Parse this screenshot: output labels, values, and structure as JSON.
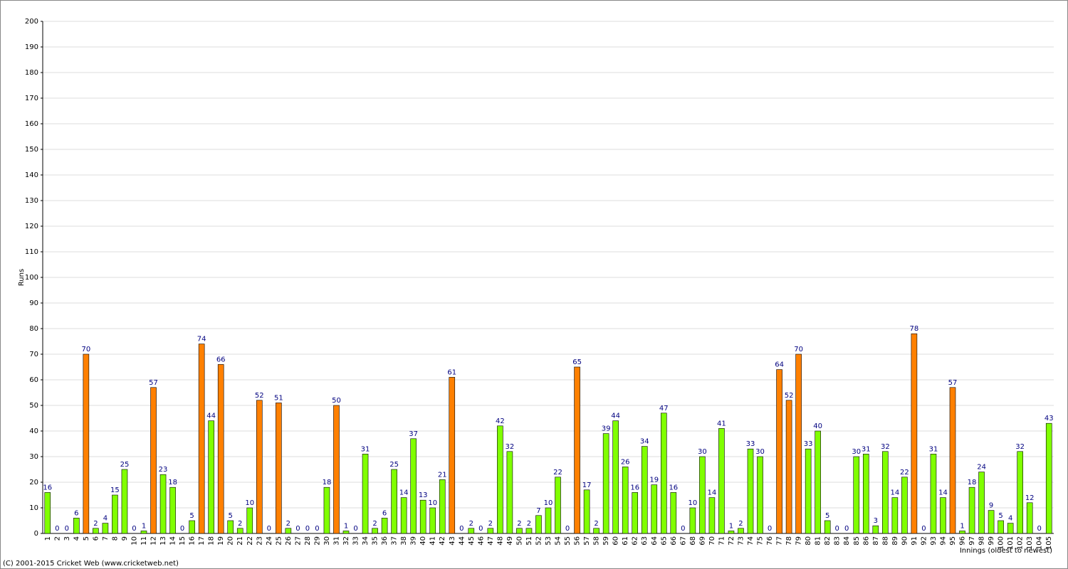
{
  "chart_data": {
    "type": "bar",
    "y_label": "Runs",
    "x_label": "Innings (oldest to newest)",
    "footer": "(C) 2001-2015 Cricket Web (www.cricketweb.net)",
    "categories": [
      "1",
      "2",
      "3",
      "4",
      "5",
      "6",
      "7",
      "8",
      "9",
      "10",
      "11",
      "12",
      "13",
      "14",
      "15",
      "16",
      "17",
      "18",
      "19",
      "20",
      "21",
      "22",
      "23",
      "24",
      "25",
      "26",
      "27",
      "28",
      "29",
      "30",
      "31",
      "32",
      "33",
      "34",
      "35",
      "36",
      "37",
      "38",
      "39",
      "40",
      "41",
      "42",
      "43",
      "44",
      "45",
      "46",
      "47",
      "48",
      "49",
      "50",
      "51",
      "52",
      "53",
      "54",
      "55",
      "56",
      "57",
      "58",
      "59",
      "60",
      "61",
      "62",
      "63",
      "64",
      "65",
      "66",
      "67",
      "68",
      "69",
      "70",
      "71",
      "72",
      "73",
      "74",
      "75",
      "76",
      "77",
      "78",
      "79",
      "80",
      "81",
      "82",
      "83",
      "84",
      "85",
      "86",
      "87",
      "88",
      "89",
      "90",
      "91",
      "92",
      "93",
      "94",
      "95",
      "96",
      "97",
      "98",
      "99",
      "100",
      "101",
      "102",
      "103",
      "104",
      "105"
    ],
    "values": [
      16,
      0,
      0,
      6,
      70,
      2,
      4,
      15,
      25,
      0,
      1,
      57,
      23,
      18,
      0,
      5,
      74,
      44,
      66,
      5,
      2,
      10,
      52,
      0,
      51,
      2,
      0,
      0,
      0,
      18,
      50,
      1,
      0,
      31,
      2,
      6,
      25,
      14,
      37,
      13,
      10,
      21,
      61,
      0,
      2,
      0,
      2,
      42,
      32,
      2,
      2,
      7,
      10,
      22,
      0,
      65,
      17,
      2,
      39,
      44,
      26,
      16,
      34,
      19,
      47,
      16,
      0,
      10,
      30,
      14,
      41,
      1,
      2,
      33,
      30,
      0,
      64,
      52,
      70,
      33,
      40,
      5,
      0,
      0,
      30,
      31,
      3,
      32,
      14,
      22,
      78,
      0,
      31,
      14,
      57,
      1,
      18,
      24,
      9,
      5,
      4,
      32,
      12,
      0,
      43
    ],
    "colors": [
      "#80ff00",
      "#80ff00",
      "#80ff00",
      "#80ff00",
      "#ff8000",
      "#80ff00",
      "#80ff00",
      "#80ff00",
      "#80ff00",
      "#80ff00",
      "#80ff00",
      "#ff8000",
      "#80ff00",
      "#80ff00",
      "#80ff00",
      "#80ff00",
      "#ff8000",
      "#80ff00",
      "#ff8000",
      "#80ff00",
      "#80ff00",
      "#80ff00",
      "#ff8000",
      "#80ff00",
      "#ff8000",
      "#80ff00",
      "#80ff00",
      "#80ff00",
      "#80ff00",
      "#80ff00",
      "#ff8000",
      "#80ff00",
      "#80ff00",
      "#80ff00",
      "#80ff00",
      "#80ff00",
      "#80ff00",
      "#80ff00",
      "#80ff00",
      "#80ff00",
      "#80ff00",
      "#80ff00",
      "#ff8000",
      "#80ff00",
      "#80ff00",
      "#80ff00",
      "#80ff00",
      "#80ff00",
      "#80ff00",
      "#80ff00",
      "#80ff00",
      "#80ff00",
      "#80ff00",
      "#80ff00",
      "#80ff00",
      "#ff8000",
      "#80ff00",
      "#80ff00",
      "#80ff00",
      "#80ff00",
      "#80ff00",
      "#80ff00",
      "#80ff00",
      "#80ff00",
      "#80ff00",
      "#80ff00",
      "#80ff00",
      "#80ff00",
      "#80ff00",
      "#80ff00",
      "#80ff00",
      "#80ff00",
      "#80ff00",
      "#80ff00",
      "#80ff00",
      "#80ff00",
      "#ff8000",
      "#ff8000",
      "#ff8000",
      "#80ff00",
      "#80ff00",
      "#80ff00",
      "#80ff00",
      "#80ff00",
      "#80ff00",
      "#80ff00",
      "#80ff00",
      "#80ff00",
      "#80ff00",
      "#80ff00",
      "#ff8000",
      "#80ff00",
      "#80ff00",
      "#80ff00",
      "#ff8000",
      "#80ff00",
      "#80ff00",
      "#80ff00",
      "#80ff00",
      "#80ff00",
      "#80ff00",
      "#80ff00",
      "#80ff00",
      "#80ff00",
      "#80ff00"
    ],
    "ylim": [
      0,
      200
    ],
    "yticks": [
      0,
      10,
      20,
      30,
      40,
      50,
      60,
      70,
      80,
      90,
      100,
      110,
      120,
      130,
      140,
      150,
      160,
      170,
      180,
      190,
      200
    ],
    "grid": true
  }
}
